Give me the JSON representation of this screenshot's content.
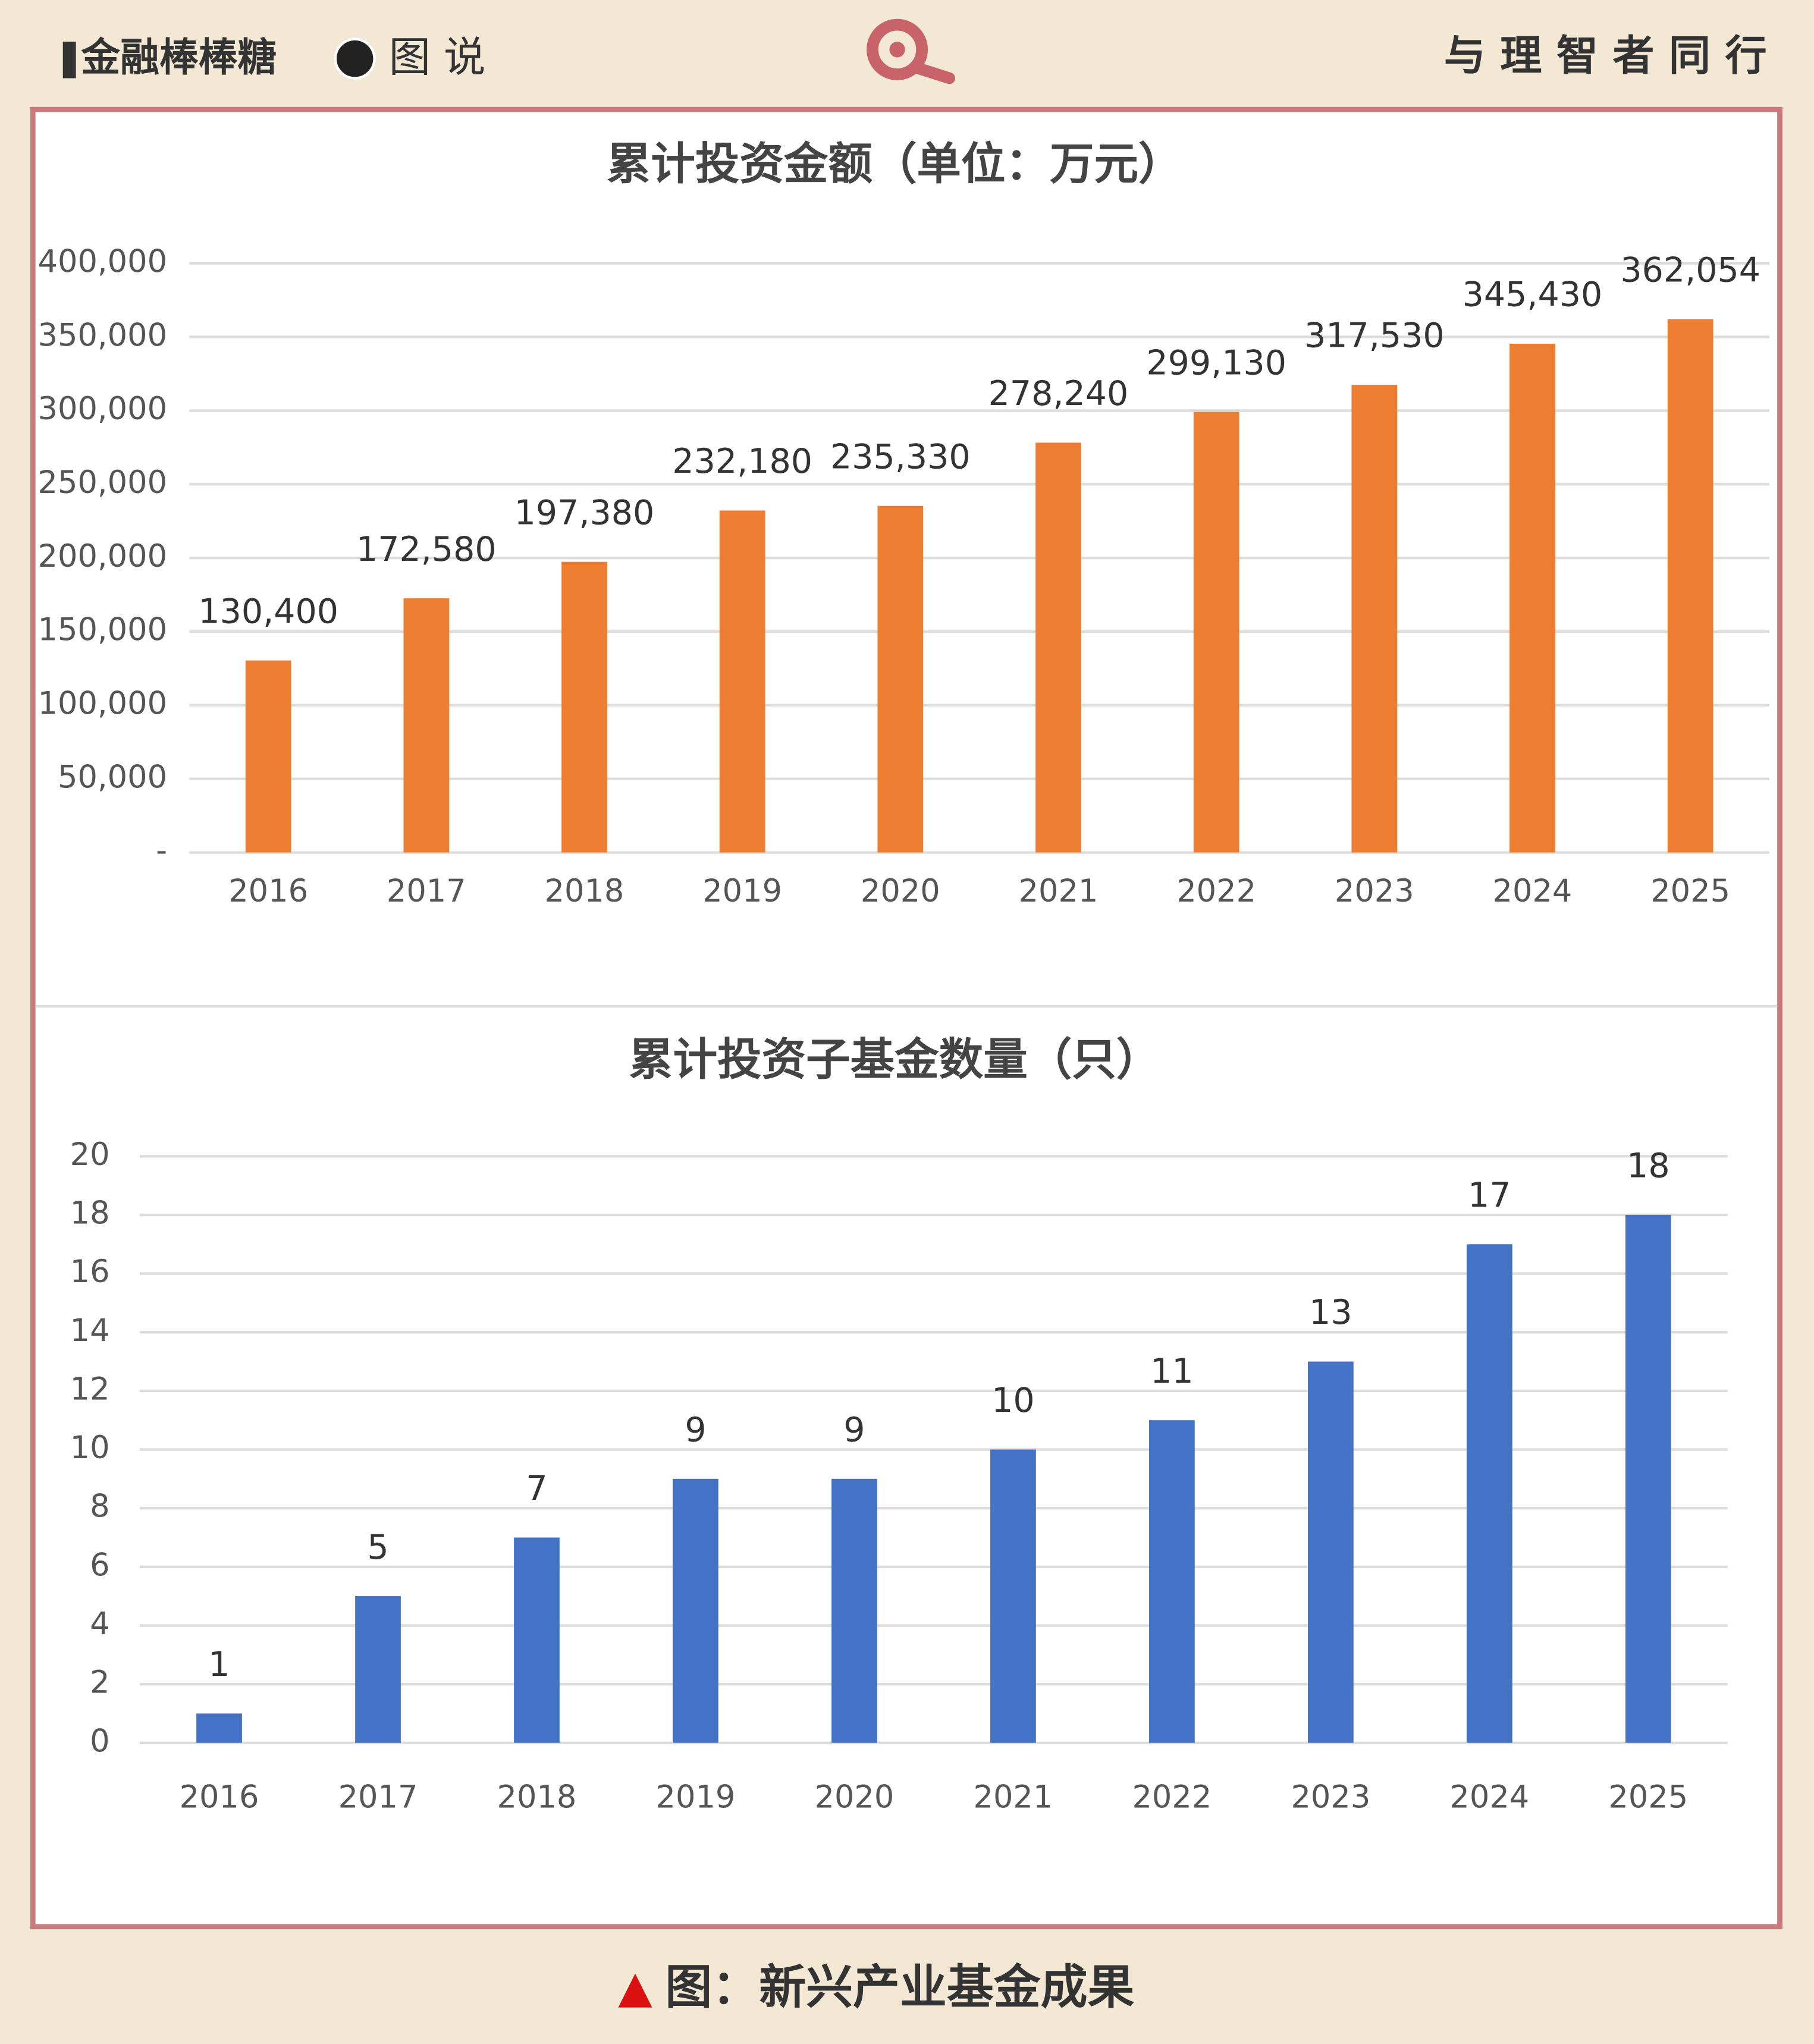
{
  "header": {
    "brand": "金融棒棒糖",
    "section": "图 说",
    "slogan": "与 理 智 者 同 行"
  },
  "chart_data": [
    {
      "type": "bar",
      "title": "累计投资金额（单位：万元）",
      "categories": [
        "2016",
        "2017",
        "2018",
        "2019",
        "2020",
        "2021",
        "2022",
        "2023",
        "2024",
        "2025"
      ],
      "values": [
        130400,
        172580,
        197380,
        232180,
        235330,
        278240,
        299130,
        317530,
        345430,
        362054
      ],
      "value_labels": [
        "130,400",
        "172,580",
        "197,380",
        "232,180",
        "235,330",
        "278,240",
        "299,130",
        "317,530",
        "345,430",
        "362,054"
      ],
      "color": "#ed7d31",
      "ylim": [
        0,
        400000
      ],
      "yticks": [
        {
          "value": 0,
          "label": "-"
        },
        {
          "value": 50000,
          "label": "50,000"
        },
        {
          "value": 100000,
          "label": "100,000"
        },
        {
          "value": 150000,
          "label": "150,000"
        },
        {
          "value": 200000,
          "label": "200,000"
        },
        {
          "value": 250000,
          "label": "250,000"
        },
        {
          "value": 300000,
          "label": "300,000"
        },
        {
          "value": 350000,
          "label": "350,000"
        },
        {
          "value": 400000,
          "label": "400,000"
        }
      ],
      "grid": true
    },
    {
      "type": "bar",
      "title": "累计投资子基金数量（只）",
      "categories": [
        "2016",
        "2017",
        "2018",
        "2019",
        "2020",
        "2021",
        "2022",
        "2023",
        "2024",
        "2025"
      ],
      "values": [
        1,
        5,
        7,
        9,
        9,
        10,
        11,
        13,
        17,
        18
      ],
      "color": "#4472c4",
      "ylim": [
        0,
        20
      ],
      "yticks": [
        0,
        2,
        4,
        6,
        8,
        10,
        12,
        14,
        16,
        18,
        20
      ],
      "grid": true
    }
  ],
  "caption": "图：新兴产业基金成果"
}
